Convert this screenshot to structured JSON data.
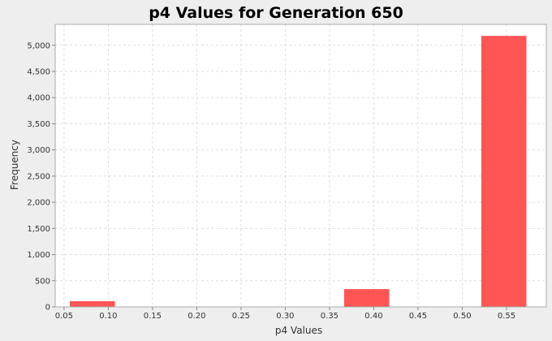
{
  "chart_data": {
    "type": "bar",
    "title": "p4 Values for Generation 650",
    "xlabel": "p4 Values",
    "ylabel": "Frequency",
    "xlim": [
      0.04,
      0.595
    ],
    "ylim": [
      0,
      5400
    ],
    "x_ticks": [
      0.05,
      0.1,
      0.15,
      0.2,
      0.25,
      0.3,
      0.35,
      0.4,
      0.45,
      0.5,
      0.55
    ],
    "x_tick_labels": [
      "0.05",
      "0.10",
      "0.15",
      "0.20",
      "0.25",
      "0.30",
      "0.35",
      "0.40",
      "0.45",
      "0.50",
      "0.55"
    ],
    "y_ticks": [
      0,
      500,
      1000,
      1500,
      2000,
      2500,
      3000,
      3500,
      4000,
      4500,
      5000
    ],
    "y_tick_labels": [
      "0",
      "500",
      "1,000",
      "1,500",
      "2,000",
      "2,500",
      "3,000",
      "3,500",
      "4,000",
      "4,500",
      "5,000"
    ],
    "bins": [
      {
        "x0": 0.0565,
        "x1": 0.1075,
        "value": 110
      },
      {
        "x0": 0.3665,
        "x1": 0.4175,
        "value": 340
      },
      {
        "x0": 0.5215,
        "x1": 0.5725,
        "value": 5180
      }
    ],
    "grid": true,
    "bar_color": "#ff5555",
    "plot_background": "#ffffff",
    "grid_color": "#dddddd"
  }
}
